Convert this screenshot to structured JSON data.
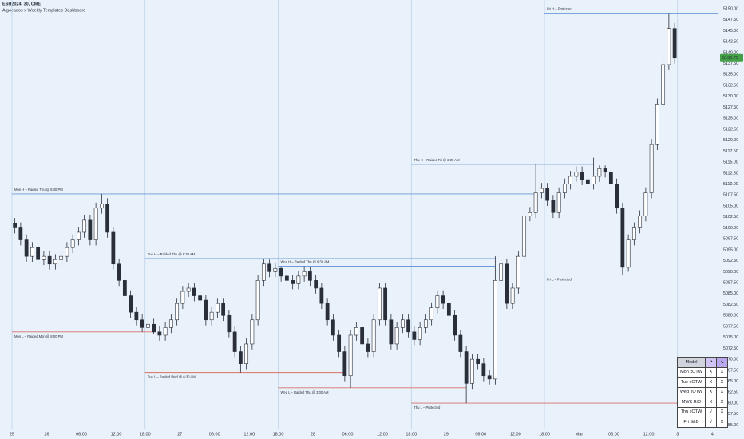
{
  "chart_data": {
    "type": "candlestick",
    "title": "ESH2024, 30, CME",
    "subtitle": "Algocados x Weekly Templates Dashboard",
    "categories": [
      "25",
      null,
      null,
      null,
      null,
      null,
      "26",
      null,
      null,
      null,
      null,
      null,
      "06:00",
      null,
      null,
      null,
      null,
      null,
      "12:00",
      null,
      null,
      null,
      null,
      "18:00",
      null,
      null,
      null,
      null,
      null,
      "27",
      null,
      null,
      null,
      null,
      null,
      "06:00",
      null,
      null,
      null,
      null,
      null,
      "12:00",
      null,
      null,
      null,
      null,
      "18:00",
      null,
      null,
      null,
      null,
      null,
      "28",
      null,
      null,
      null,
      null,
      null,
      "06:00",
      null,
      null,
      null,
      null,
      null,
      "12:00",
      null,
      null,
      null,
      null,
      "18:00",
      null,
      null,
      null,
      null,
      null,
      "29",
      null,
      null,
      null,
      null,
      null,
      "06:00",
      null,
      null,
      null,
      null,
      null,
      "12:00",
      null,
      null,
      null,
      null,
      "18:00",
      null,
      null,
      null,
      null,
      null,
      "Mar",
      null,
      null,
      null,
      null,
      null,
      "06:00",
      null,
      null,
      null,
      null,
      null,
      "12:00",
      null,
      null,
      null,
      null,
      "3",
      null,
      null,
      null,
      null,
      null,
      "4"
    ],
    "open": [
      5101.0,
      5100.0,
      5097.25,
      5093.5,
      5095.5,
      5092.75,
      5093.5,
      5091.75,
      5092.75,
      5093.5,
      5095.5,
      5097.25,
      5099.0,
      5101.75,
      5097.25,
      5104.5,
      5105.5,
      5099.0,
      5091.75,
      5088.0,
      5084.5,
      5080.75,
      5079.0,
      5077.25,
      5078.0,
      5076.25,
      5075.5,
      5077.25,
      5079.0,
      5082.75,
      5085.5,
      5086.25,
      5084.5,
      5083.5,
      5079.0,
      5080.75,
      5082.75,
      5080.0,
      5076.25,
      5071.75,
      5069.0,
      5073.5,
      5079.0,
      5088.0,
      5091.75,
      5090.0,
      5090.75,
      5089.0,
      5088.0,
      5087.25,
      5089.0,
      5090.0,
      5088.0,
      5086.25,
      5082.75,
      5079.0,
      5075.5,
      5071.75,
      5066.25,
      5075.5,
      5077.25,
      5073.5,
      5071.75,
      5079.0,
      5086.25,
      5079.0,
      5073.5,
      5077.25,
      5079.0,
      5076.25,
      5074.5,
      5077.25,
      5079.0,
      5081.75,
      5084.5,
      5082.75,
      5080.0,
      5075.5,
      5071.75,
      5064.5,
      5070.0,
      5069.0,
      5066.25,
      5065.5,
      5088.0,
      5091.75,
      5082.75,
      5086.25,
      5093.5,
      5102.75,
      5103.5,
      5108.0,
      5109.0,
      5106.25,
      5103.5,
      5108.0,
      5110.0,
      5111.75,
      5112.75,
      5111.0,
      5110.0,
      5111.75,
      5113.5,
      5112.75,
      5110.0,
      5104.5,
      5091.0,
      5097.25,
      5100.0,
      5102.75,
      5108.0,
      5119.0,
      5128.25,
      5137.25,
      5145.5,
      null,
      null,
      null,
      null,
      null,
      null,
      null
    ],
    "high": [
      5102.25,
      5101.25,
      5098.5,
      5096.75,
      5096.75,
      5094.75,
      5094.75,
      5094.0,
      5094.75,
      5096.75,
      5098.5,
      5100.25,
      5103.0,
      5103.0,
      5105.75,
      5107.75,
      5106.75,
      5100.25,
      5093.0,
      5089.25,
      5085.75,
      5082.0,
      5080.25,
      5079.25,
      5079.25,
      5077.5,
      5078.5,
      5080.25,
      5084.0,
      5086.75,
      5087.5,
      5087.5,
      5085.75,
      5084.75,
      5082.0,
      5084.0,
      5084.0,
      5081.25,
      5077.5,
      5073.0,
      5074.75,
      5080.25,
      5089.25,
      5093.0,
      5092.75,
      5092.0,
      5091.0,
      5090.25,
      5089.25,
      5090.25,
      5091.25,
      5091.0,
      5089.25,
      5087.5,
      5084.0,
      5080.25,
      5076.75,
      5073.0,
      5076.75,
      5078.5,
      5078.5,
      5074.75,
      5080.25,
      5087.5,
      5087.5,
      5080.25,
      5078.5,
      5080.25,
      5080.25,
      5077.5,
      5078.5,
      5080.25,
      5083.0,
      5085.75,
      5085.75,
      5084.0,
      5081.25,
      5076.75,
      5073.0,
      5071.25,
      5071.25,
      5070.25,
      5067.5,
      5093.5,
      5093.0,
      5093.0,
      5087.5,
      5094.75,
      5104.0,
      5104.75,
      5114.5,
      5110.25,
      5110.25,
      5107.5,
      5109.25,
      5111.25,
      5113.0,
      5114.0,
      5114.0,
      5112.25,
      5116.0,
      5114.25,
      5114.25,
      5114.0,
      5111.25,
      5105.75,
      5098.5,
      5101.25,
      5104.0,
      5109.25,
      5120.25,
      5129.5,
      5138.5,
      5149.0,
      5146.75,
      null,
      null,
      null,
      null,
      null,
      null,
      null
    ],
    "low": [
      5098.75,
      5096.0,
      5092.25,
      5092.25,
      5091.5,
      5091.5,
      5090.5,
      5090.5,
      5091.5,
      5092.25,
      5094.25,
      5096.0,
      5097.75,
      5096.0,
      5096.0,
      5103.25,
      5097.75,
      5090.5,
      5086.75,
      5083.25,
      5079.5,
      5077.75,
      5076.25,
      5076.5,
      5075.75,
      5074.25,
      5074.25,
      5076.0,
      5077.75,
      5081.5,
      5084.25,
      5083.25,
      5082.25,
      5077.75,
      5077.75,
      5079.5,
      5078.75,
      5075.0,
      5070.5,
      5067.0,
      5067.75,
      5072.25,
      5077.75,
      5086.75,
      5088.75,
      5088.75,
      5087.75,
      5086.75,
      5086.0,
      5086.0,
      5087.75,
      5086.75,
      5085.0,
      5081.5,
      5077.75,
      5074.25,
      5070.5,
      5065.0,
      5063.5,
      5074.25,
      5072.25,
      5070.5,
      5070.5,
      5077.75,
      5077.75,
      5072.25,
      5072.25,
      5076.0,
      5075.0,
      5073.25,
      5073.25,
      5076.0,
      5077.75,
      5080.5,
      5081.5,
      5078.75,
      5074.25,
      5070.5,
      5060.0,
      5063.25,
      5067.75,
      5065.0,
      5064.25,
      5064.25,
      5086.75,
      5081.5,
      5081.5,
      5085.0,
      5092.25,
      5101.5,
      5102.25,
      5106.75,
      5105.0,
      5102.25,
      5102.25,
      5106.75,
      5108.75,
      5110.5,
      5109.75,
      5108.75,
      5108.75,
      5110.5,
      5111.5,
      5108.75,
      5103.25,
      5089.25,
      5090.0,
      5096.0,
      5098.75,
      5101.5,
      5106.75,
      5117.75,
      5127.0,
      5136.0,
      5137.5,
      null,
      null,
      null,
      null,
      null,
      null,
      null
    ],
    "close": [
      5100.0,
      5097.25,
      5093.5,
      5095.5,
      5092.75,
      5093.5,
      5091.75,
      5092.75,
      5093.5,
      5095.5,
      5097.25,
      5099.0,
      5101.75,
      5097.25,
      5104.5,
      5105.5,
      5099.0,
      5091.75,
      5088.0,
      5084.5,
      5080.75,
      5079.0,
      5077.25,
      5078.0,
      5076.25,
      5075.5,
      5077.25,
      5079.0,
      5082.75,
      5085.5,
      5086.25,
      5084.5,
      5083.5,
      5079.0,
      5080.75,
      5082.75,
      5080.0,
      5076.25,
      5071.75,
      5069.0,
      5073.5,
      5079.0,
      5088.0,
      5091.75,
      5090.0,
      5090.75,
      5089.0,
      5088.0,
      5087.25,
      5089.0,
      5090.0,
      5088.0,
      5086.25,
      5082.75,
      5079.0,
      5075.5,
      5071.75,
      5066.25,
      5075.5,
      5077.25,
      5073.5,
      5071.75,
      5079.0,
      5086.25,
      5079.0,
      5073.5,
      5077.25,
      5079.0,
      5076.25,
      5074.5,
      5077.25,
      5079.0,
      5081.75,
      5084.5,
      5082.75,
      5080.0,
      5075.5,
      5071.75,
      5064.5,
      5070.0,
      5069.0,
      5066.25,
      5065.5,
      5088.0,
      5091.75,
      5082.75,
      5086.25,
      5093.5,
      5102.75,
      5103.5,
      5108.0,
      5109.0,
      5106.25,
      5103.5,
      5108.0,
      5110.0,
      5111.75,
      5112.75,
      5111.0,
      5110.0,
      5111.75,
      5113.5,
      5112.75,
      5110.0,
      5104.5,
      5091.0,
      5097.25,
      5100.0,
      5102.75,
      5108.0,
      5119.0,
      5128.25,
      5137.25,
      5145.5,
      5138.75,
      null,
      null,
      null,
      null,
      null,
      null,
      null
    ],
    "up_color": "#ffffff",
    "down_color": "#2a2e39",
    "wick_color": "#2a2e39",
    "last_price_color": "#43a047",
    "ylim": [
      5054,
      5152
    ],
    "yticks": [
      {
        "value": 5055,
        "label": "5055.00"
      },
      {
        "value": 5057.5,
        "label": "5057.50"
      },
      {
        "value": 5060,
        "label": "5060.00"
      },
      {
        "value": 5062.5,
        "label": "5062.50"
      },
      {
        "value": 5065,
        "label": "5065.00"
      },
      {
        "value": 5067.5,
        "label": "5067.50"
      },
      {
        "value": 5070,
        "label": "5070.00"
      },
      {
        "value": 5072.5,
        "label": "5072.50"
      },
      {
        "value": 5075,
        "label": "5075.00"
      },
      {
        "value": 5077.5,
        "label": "5077.50"
      },
      {
        "value": 5080,
        "label": "5080.00"
      },
      {
        "value": 5082.5,
        "label": "5082.50"
      },
      {
        "value": 5085,
        "label": "5085.00"
      },
      {
        "value": 5087.5,
        "label": "5087.50"
      },
      {
        "value": 5090,
        "label": "5090.00"
      },
      {
        "value": 5092.5,
        "label": "5092.50"
      },
      {
        "value": 5095,
        "label": "5095.00"
      },
      {
        "value": 5097.5,
        "label": "5097.50"
      },
      {
        "value": 5100,
        "label": "5100.00"
      },
      {
        "value": 5102.5,
        "label": "5102.50"
      },
      {
        "value": 5105,
        "label": "5105.00"
      },
      {
        "value": 5107.5,
        "label": "5107.50"
      },
      {
        "value": 5110,
        "label": "5110.00"
      },
      {
        "value": 5112.5,
        "label": "5112.50"
      },
      {
        "value": 5115,
        "label": "5115.00"
      },
      {
        "value": 5117.5,
        "label": "5117.50"
      },
      {
        "value": 5120,
        "label": "5120.00"
      },
      {
        "value": 5122.5,
        "label": "5122.50"
      },
      {
        "value": 5125,
        "label": "5125.00"
      },
      {
        "value": 5127.5,
        "label": "5127.50"
      },
      {
        "value": 5130,
        "label": "5130.00"
      },
      {
        "value": 5132.5,
        "label": "5132.50"
      },
      {
        "value": 5135,
        "label": "5135.00"
      },
      {
        "value": 5137.5,
        "label": "5137.50"
      },
      {
        "value": 5140,
        "label": "5140.00"
      },
      {
        "value": 5142.5,
        "label": "5142.50"
      },
      {
        "value": 5145,
        "label": "5145.00"
      },
      {
        "value": 5147.5,
        "label": "5147.50"
      },
      {
        "value": 5150,
        "label": "5150.00"
      }
    ],
    "grid": false,
    "high_color": "#6a9bd8",
    "low_color": "#d9706b",
    "levels": [
      {
        "label": "Mon H – Raided Thu @ 5:30 PM",
        "value": 5107.75
      },
      {
        "label": "Mon L – Raided Mon @ 8:00 PM",
        "value": 5076.25
      },
      {
        "label": "Tue H – Raided Thu @ 8:30 AM",
        "value": 5093.0
      },
      {
        "label": "Tue L – Raided Wed @ 6:30 AM",
        "value": 5067.0
      },
      {
        "label": "Wed H – Raided Thu @ 9:30 AM",
        "value": 5091.25
      },
      {
        "label": "Wed L – Raided Thu @ 3:00 AM",
        "value": 5063.5
      },
      {
        "label": "Thu H – Raided Fri @ 2:00 AM",
        "value": 5114.5
      },
      {
        "label": "Thu L – Protected",
        "value": 5060.0
      },
      {
        "label": "Fri H – Protected",
        "value": 5149.0
      },
      {
        "label": "Fri L – Protected",
        "value": 5089.25
      }
    ],
    "dashboard": {
      "header": [
        "Model",
        "↗",
        "↘"
      ],
      "header_colors": [
        "#d1d4dc",
        "#cfc4f3",
        "#b9a8ee"
      ],
      "rows": [
        [
          "Mon xOTW",
          "X",
          "X"
        ],
        [
          "Tue xOTW",
          "X",
          "X"
        ],
        [
          "Wed xOTW",
          "X",
          "X"
        ],
        [
          "MWK R/D",
          "X",
          "X"
        ],
        [
          "Thu xOTW",
          "√",
          "X"
        ],
        [
          "Fri S&D",
          "√",
          "X"
        ]
      ]
    }
  }
}
